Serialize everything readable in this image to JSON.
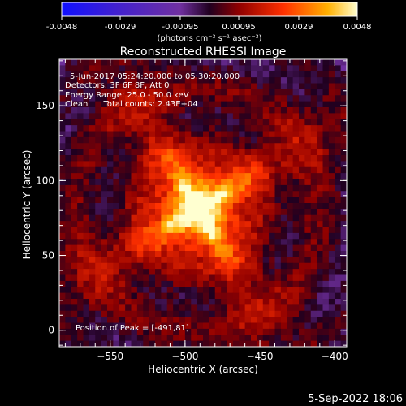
{
  "chart_data": {
    "type": "heatmap",
    "title": "Reconstructed RHESSI Image",
    "colorbar": {
      "ticks": [
        "-0.0048",
        "-0.0029",
        "-0.00095",
        "0.00095",
        "0.0029",
        "0.0048"
      ],
      "range": [
        -0.0048,
        0.0048
      ],
      "unit_label": "(photons cm⁻² s⁻¹ asec⁻²)",
      "colormap": "rainbow-to-heat"
    },
    "info_lines": [
      "5-Jun-2017 05:24:20.000 to 05:30:20.000",
      "Detectors: 3F 6F 8F, Att 0",
      "Energy Range: 25.0 - 50.0 keV",
      "Clean      Total counts: 2.43E+04"
    ],
    "peak_label": "Position of Peak = [-491,81]",
    "peak": {
      "x": -491,
      "y": 81
    },
    "xlabel": "Heliocentric X (arcsec)",
    "ylabel": "Heliocentric Y (arcsec)",
    "xticks": [
      "-550",
      "-500",
      "-450",
      "-400"
    ],
    "yticks": [
      "0",
      "50",
      "100",
      "150"
    ],
    "xlim": [
      -584,
      -392
    ],
    "ylim": [
      -11,
      181
    ],
    "grid": false
  },
  "timestamp": "5-Sep-2022 18:06"
}
